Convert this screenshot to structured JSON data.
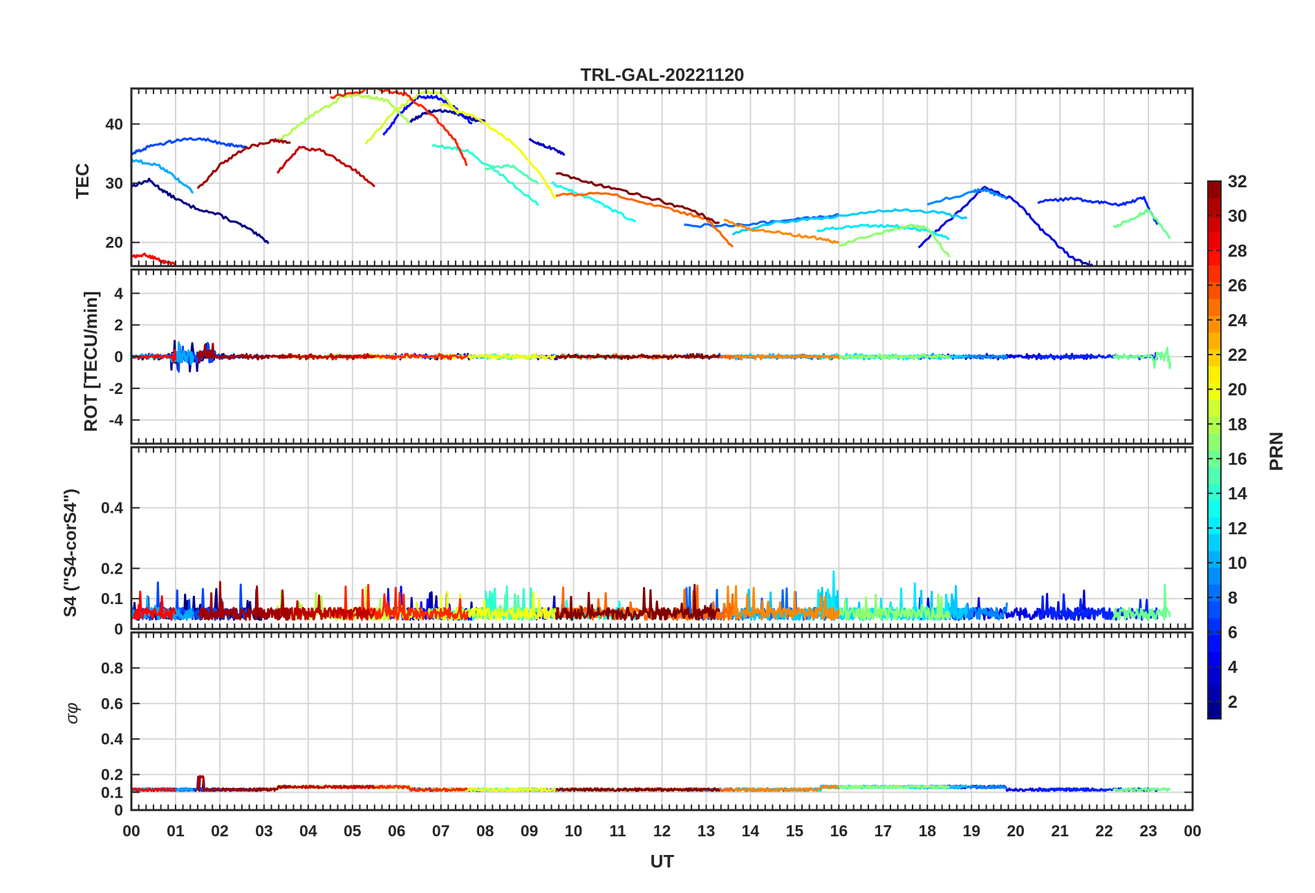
{
  "chart_data": {
    "type": "line",
    "title": "TRL-GAL-20221120",
    "xlabel": "UT",
    "x_ticks": [
      "00",
      "01",
      "02",
      "03",
      "04",
      "05",
      "06",
      "07",
      "08",
      "09",
      "10",
      "11",
      "12",
      "13",
      "14",
      "15",
      "16",
      "17",
      "18",
      "19",
      "20",
      "21",
      "22",
      "23",
      "00"
    ],
    "xlim": [
      0,
      24
    ],
    "colorbar": {
      "label": "PRN",
      "range": [
        1,
        32
      ],
      "ticks": [
        "2",
        "4",
        "6",
        "8",
        "10",
        "12",
        "14",
        "16",
        "18",
        "20",
        "22",
        "24",
        "26",
        "28",
        "30",
        "32"
      ],
      "colormap": "jet"
    },
    "panels": [
      {
        "name": "tec",
        "ylabel": "TEC",
        "ylim": [
          16,
          46
        ],
        "yticks": [
          "20",
          "30",
          "40"
        ],
        "series": [
          {
            "prn": 1,
            "x": [
              0,
              0.4,
              0.8,
              1.3,
              2.0,
              2.6,
              3.1
            ],
            "y": [
              29.5,
              30.5,
              28.3,
              26.2,
              24.6,
              22.5,
              20.0
            ]
          },
          {
            "prn": 2,
            "x": [
              6.3,
              6.7,
              7.2,
              7.6,
              8.0
            ],
            "y": [
              40.5,
              42.0,
              42.3,
              41.0,
              40.4
            ]
          },
          {
            "prn": 3,
            "x": [
              9.0,
              9.4,
              9.8
            ],
            "y": [
              37.3,
              36.2,
              34.8
            ]
          },
          {
            "prn": 4,
            "x": [
              17.8,
              18.6,
              19.3,
              20.0,
              20.6,
              21.2,
              21.8
            ],
            "y": [
              19.2,
              24.5,
              29.3,
              27.1,
              22.0,
              17.8,
              15.8
            ]
          },
          {
            "prn": 5,
            "x": [
              5.7,
              6.1,
              6.5,
              6.9,
              7.3,
              7.7
            ],
            "y": [
              38.0,
              42.0,
              44.6,
              44.6,
              42.8,
              40.1
            ]
          },
          {
            "prn": 6,
            "x": [
              20.5,
              21.3,
              21.9,
              22.4,
              22.9,
              23.2
            ],
            "y": [
              26.8,
              27.4,
              26.8,
              26.4,
              27.5,
              23.0
            ]
          },
          {
            "prn": 7,
            "x": [
              0,
              0.4,
              1.0,
              1.6,
              2.2,
              2.6
            ],
            "y": [
              35.0,
              36.2,
              37.2,
              37.5,
              36.5,
              36.2
            ]
          },
          {
            "prn": 8,
            "x": [
              12.5,
              13.8,
              15.0,
              16.0
            ],
            "y": [
              22.8,
              23.0,
              23.8,
              24.6
            ]
          },
          {
            "prn": 9,
            "x": [
              18.0,
              19.0,
              19.3,
              19.8
            ],
            "y": [
              26.5,
              28.5,
              29.0,
              27.2
            ]
          },
          {
            "prn": 10,
            "x": [
              0,
              0.6,
              1.0,
              1.4
            ],
            "y": [
              34.0,
              33.0,
              31.0,
              28.5
            ]
          },
          {
            "prn": 11,
            "x": [
              13.6,
              14.6,
              15.8,
              17.2,
              18.2,
              18.9
            ],
            "y": [
              21.5,
              23.5,
              24.2,
              25.5,
              25.1,
              24.1
            ]
          },
          {
            "prn": 12,
            "x": [
              15.5,
              16.5,
              17.2,
              18.0,
              18.5
            ],
            "y": [
              22.0,
              22.8,
              22.8,
              22.0,
              20.5
            ]
          },
          {
            "prn": 13,
            "x": [
              9.5,
              10.2,
              10.8,
              11.4
            ],
            "y": [
              30.0,
              28.0,
              25.8,
              23.5
            ]
          },
          {
            "prn": 14,
            "x": [
              6.8,
              7.6,
              8.4,
              9.2
            ],
            "y": [
              36.5,
              35.4,
              31.2,
              26.4
            ]
          },
          {
            "prn": 15,
            "x": [
              8.0,
              8.6,
              9.2
            ],
            "y": [
              32.5,
              33.0,
              30.0
            ]
          },
          {
            "prn": 16,
            "x": [
              22.2,
              22.7,
              23.0,
              23.5
            ],
            "y": [
              22.5,
              24.3,
              25.5,
              20.7
            ]
          },
          {
            "prn": 17,
            "x": [
              16.0,
              17.0,
              17.6,
              18.0,
              18.5
            ],
            "y": [
              19.5,
              21.8,
              22.8,
              22.5,
              17.5
            ]
          },
          {
            "prn": 18,
            "x": [
              3.3,
              4.0,
              4.8,
              5.2,
              5.8,
              6.3
            ],
            "y": [
              37.0,
              41.0,
              44.7,
              44.8,
              44.0,
              40.0
            ]
          },
          {
            "prn": 19,
            "x": [
              5.3,
              6.0,
              6.6,
              7.0,
              7.4
            ],
            "y": [
              36.8,
              42.5,
              45.5,
              45.2,
              41.7
            ]
          },
          {
            "prn": 20,
            "x": [
              7.0,
              7.8,
              8.6,
              9.2,
              9.6
            ],
            "y": [
              43.5,
              41.0,
              37.0,
              32.0,
              27.5
            ]
          },
          {
            "prn": 24,
            "x": [
              13.4,
              14.0,
              14.8,
              15.5,
              16.0
            ],
            "y": [
              23.7,
              22.2,
              21.5,
              20.7,
              19.9
            ]
          },
          {
            "prn": 25,
            "x": [
              9.6,
              10.8,
              12.0,
              13.0,
              13.6
            ],
            "y": [
              28.0,
              28.2,
              26.0,
              24.0,
              19.3
            ]
          },
          {
            "prn": 27,
            "x": [
              4.5,
              5.5,
              6.2,
              6.8,
              7.3,
              7.6
            ],
            "y": [
              44.5,
              46.0,
              45.0,
              41.5,
              37.5,
              33.0
            ]
          },
          {
            "prn": 28,
            "x": [
              0,
              0.3,
              0.7,
              1.0
            ],
            "y": [
              17.5,
              18.0,
              16.8,
              16.3
            ]
          },
          {
            "prn": 30,
            "x": [
              3.3,
              3.8,
              4.3,
              5.0,
              5.5
            ],
            "y": [
              31.8,
              36.0,
              35.5,
              32.5,
              29.5
            ]
          },
          {
            "prn": 31,
            "x": [
              1.5,
              2.0,
              2.6,
              3.2,
              3.6
            ],
            "y": [
              29.0,
              33.0,
              36.0,
              37.2,
              37.0
            ]
          },
          {
            "prn": 32,
            "x": [
              9.6,
              10.4,
              11.2,
              12.0,
              12.8,
              13.3
            ],
            "y": [
              31.8,
              30.0,
              28.5,
              27.0,
              25.0,
              23.2
            ]
          }
        ]
      },
      {
        "name": "rot",
        "ylabel": "ROT [TECU/min]",
        "ylim": [
          -5.5,
          5.5
        ],
        "yticks": [
          "4",
          "2",
          "0",
          "-2",
          "-4"
        ],
        "notes": "All series fluctuate near 0; larger spikes (about +/-1.2) near 01-02 UT and 23-24 UT."
      },
      {
        "name": "s4",
        "ylabel": "S4 (\"S4-corS4\")",
        "ylim": [
          0,
          0.6
        ],
        "yticks": [
          "0",
          "0.1",
          "0.2",
          "0.4"
        ],
        "notes": "Values mostly 0.02-0.12 with peaks up to about 0.18 near 15.7 UT."
      },
      {
        "name": "sigma_phi",
        "ylabel": "σφ",
        "ylim": [
          0,
          1
        ],
        "yticks": [
          "0",
          "0.1",
          "0.2",
          "0.4",
          "0.6",
          "0.8"
        ],
        "notes": "Values near 0.11-0.13 throughout, small spike near 0.2 at about 01.6 UT."
      }
    ]
  }
}
